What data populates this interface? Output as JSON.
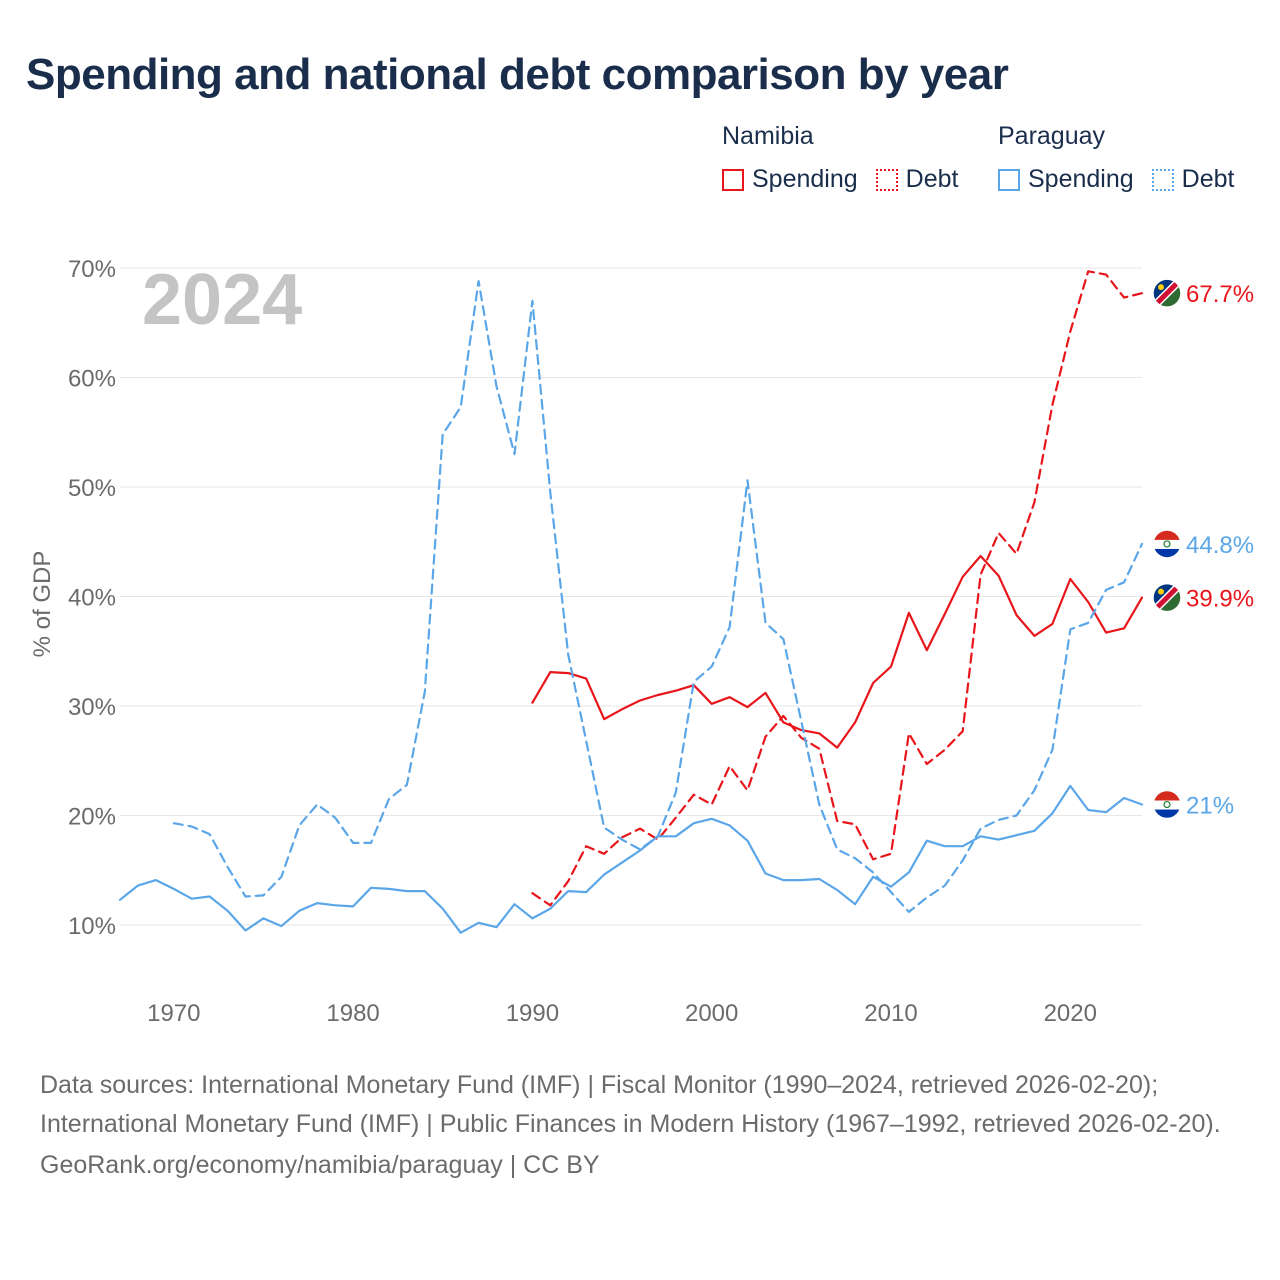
{
  "title": "Spending and national debt comparison by year",
  "legend": {
    "namibia": {
      "label": "Namibia",
      "spending": "Spending",
      "debt": "Debt"
    },
    "paraguay": {
      "label": "Paraguay",
      "spending": "Spending",
      "debt": "Debt"
    }
  },
  "colors": {
    "namibia": "#e8151b",
    "paraguay": "#5aa6e8",
    "grid": "#e6e6e6",
    "axis_text": "#6b6b6b",
    "year_watermark": "#c4c4c4"
  },
  "year_watermark": "2024",
  "footer": {
    "sources": "Data sources: International Monetary Fund (IMF) | Fiscal Monitor (1990–2024, retrieved 2026-02-20); International Monetary Fund (IMF) | Public Finances in Modern History (1967–1992, retrieved 2026-02-20).",
    "credit": "GeoRank.org/economy/namibia/paraguay | CC BY"
  },
  "chart_data": {
    "type": "line",
    "title": "Spending and national debt comparison by year",
    "xlabel": "",
    "ylabel": "% of GDP",
    "xlim": [
      1967,
      2024
    ],
    "ylim": [
      5,
      72
    ],
    "x_ticks": [
      1970,
      1980,
      1990,
      2000,
      2010,
      2020
    ],
    "x_tick_labels": [
      "1970",
      "1980",
      "1990",
      "2000",
      "2010",
      "2020"
    ],
    "y_ticks": [
      10,
      20,
      30,
      40,
      50,
      60,
      70
    ],
    "y_tick_labels": [
      "10%",
      "20%",
      "30%",
      "40%",
      "50%",
      "60%",
      "70%"
    ],
    "grid": true,
    "series": [
      {
        "name": "Namibia Spending",
        "country": "namibia",
        "style": "solid",
        "end_label": "39.9%",
        "x": [
          1990,
          1991,
          1992,
          1993,
          1994,
          1995,
          1996,
          1997,
          1998,
          1999,
          2000,
          2001,
          2002,
          2003,
          2004,
          2005,
          2006,
          2007,
          2008,
          2009,
          2010,
          2011,
          2012,
          2013,
          2014,
          2015,
          2016,
          2017,
          2018,
          2019,
          2020,
          2021,
          2022,
          2023,
          2024
        ],
        "values": [
          30.3,
          33.1,
          33.0,
          32.5,
          28.8,
          29.7,
          30.5,
          31.0,
          31.4,
          31.9,
          30.2,
          30.8,
          29.9,
          31.2,
          28.5,
          27.8,
          27.5,
          26.2,
          28.5,
          32.1,
          33.6,
          38.5,
          35.1,
          38.4,
          41.8,
          43.7,
          41.9,
          38.3,
          36.4,
          37.5,
          41.6,
          39.5,
          36.7,
          37.1,
          39.9
        ]
      },
      {
        "name": "Namibia Debt",
        "country": "namibia",
        "style": "dashed",
        "end_label": "67.7%",
        "x": [
          1990,
          1991,
          1992,
          1993,
          1994,
          1995,
          1996,
          1997,
          1998,
          1999,
          2000,
          2001,
          2002,
          2003,
          2004,
          2005,
          2006,
          2007,
          2008,
          2009,
          2010,
          2011,
          2012,
          2013,
          2014,
          2015,
          2016,
          2017,
          2018,
          2019,
          2020,
          2021,
          2022,
          2023,
          2024
        ],
        "values": [
          12.9,
          11.8,
          14.0,
          17.2,
          16.5,
          18.0,
          18.8,
          17.8,
          19.8,
          21.9,
          21.0,
          24.5,
          22.3,
          27.2,
          29.1,
          27.1,
          26.1,
          19.5,
          19.2,
          16.0,
          16.5,
          27.5,
          24.7,
          26.0,
          27.7,
          42.0,
          45.8,
          43.9,
          48.6,
          57.5,
          64.2,
          69.7,
          69.4,
          67.3,
          67.7
        ]
      },
      {
        "name": "Paraguay Spending",
        "country": "paraguay",
        "style": "solid",
        "end_label": "21%",
        "x": [
          1967,
          1968,
          1969,
          1970,
          1971,
          1972,
          1973,
          1974,
          1975,
          1976,
          1977,
          1978,
          1979,
          1980,
          1981,
          1982,
          1983,
          1984,
          1985,
          1986,
          1987,
          1988,
          1989,
          1990,
          1991,
          1992,
          1993,
          1994,
          1995,
          1996,
          1997,
          1998,
          1999,
          2000,
          2001,
          2002,
          2003,
          2004,
          2005,
          2006,
          2007,
          2008,
          2009,
          2010,
          2011,
          2012,
          2013,
          2014,
          2015,
          2016,
          2017,
          2018,
          2019,
          2020,
          2021,
          2022,
          2023,
          2024
        ],
        "values": [
          12.3,
          13.6,
          14.1,
          13.3,
          12.4,
          12.6,
          11.3,
          9.5,
          10.6,
          9.9,
          11.3,
          12.0,
          11.8,
          11.7,
          13.4,
          13.3,
          13.1,
          13.1,
          11.5,
          9.3,
          10.2,
          9.8,
          11.9,
          10.6,
          11.5,
          13.1,
          13.0,
          14.6,
          15.7,
          16.8,
          18.1,
          18.1,
          19.3,
          19.7,
          19.1,
          17.7,
          14.7,
          14.1,
          14.1,
          14.2,
          13.2,
          11.9,
          14.4,
          13.5,
          14.8,
          17.7,
          17.2,
          17.2,
          18.1,
          17.8,
          18.2,
          18.6,
          20.2,
          22.7,
          20.5,
          20.3,
          21.6,
          21.0
        ]
      },
      {
        "name": "Paraguay Debt",
        "country": "paraguay",
        "style": "dashed",
        "end_label": "44.8%",
        "x": [
          1970,
          1971,
          1972,
          1973,
          1974,
          1975,
          1976,
          1977,
          1978,
          1979,
          1980,
          1981,
          1982,
          1983,
          1984,
          1985,
          1986,
          1987,
          1988,
          1989,
          1990,
          1991,
          1992,
          1993,
          1994,
          1995,
          1996,
          1997,
          1998,
          1999,
          2000,
          2001,
          2002,
          2003,
          2004,
          2005,
          2006,
          2007,
          2008,
          2009,
          2010,
          2011,
          2012,
          2013,
          2014,
          2015,
          2016,
          2017,
          2018,
          2019,
          2020,
          2021,
          2022,
          2023,
          2024
        ],
        "values": [
          19.3,
          19.0,
          18.3,
          15.3,
          12.6,
          12.7,
          14.4,
          19.1,
          21.0,
          19.8,
          17.5,
          17.5,
          21.5,
          22.8,
          31.3,
          54.8,
          57.3,
          68.8,
          59.2,
          53.0,
          67.0,
          49.5,
          34.7,
          26.8,
          18.9,
          17.8,
          16.9,
          18.1,
          22.1,
          32.2,
          33.6,
          37.2,
          50.6,
          37.6,
          36.1,
          28.6,
          21.0,
          16.9,
          16.1,
          14.8,
          13.0,
          11.2,
          12.5,
          13.6,
          15.9,
          18.8,
          19.6,
          20.0,
          22.3,
          26.0,
          37.0,
          37.6,
          40.6,
          41.3,
          44.8
        ]
      }
    ]
  }
}
